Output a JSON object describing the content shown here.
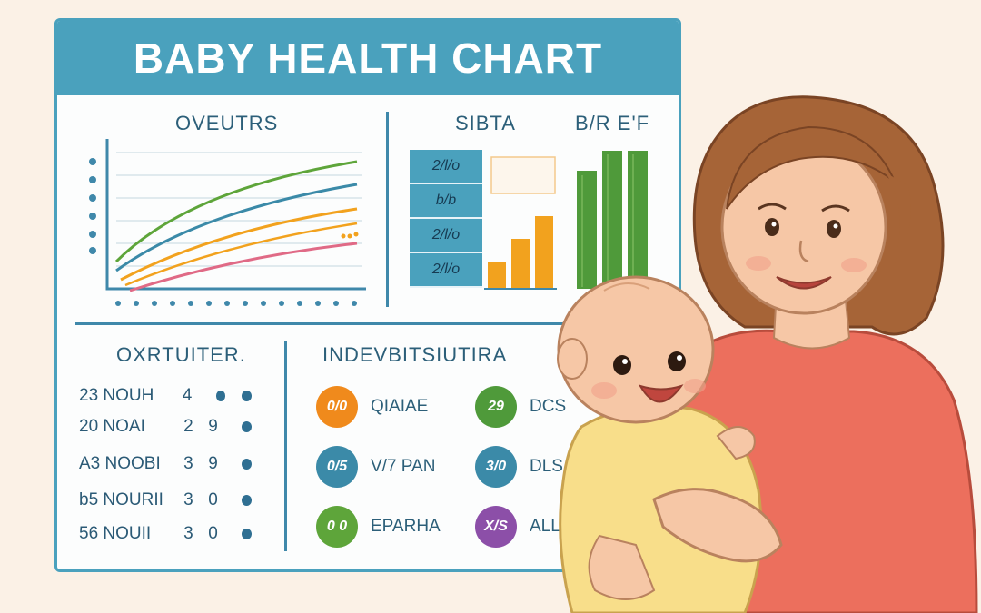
{
  "poster": {
    "title": "BABY HEALTH CHART",
    "growth_panel": {
      "label": "OVEUTRS"
    },
    "middle_panel": {
      "label": "SIBTA",
      "row_labels": [
        "2/l/o",
        "b/b",
        "2/l/o",
        "2/l/o"
      ]
    },
    "right_panel": {
      "label": "B/R E'F"
    },
    "stats_panel": {
      "label": "OXRTUITER.",
      "rows": [
        {
          "name": "23 NOUH",
          "count": "4",
          "a": "",
          "b": ""
        },
        {
          "name": "20 NOAI",
          "count": "2",
          "a": "9",
          "b": ""
        },
        {
          "name": "A3 NOOBI",
          "count": "3",
          "a": "9",
          "b": ""
        },
        {
          "name": "b5 NOURII",
          "count": "3",
          "a": "0",
          "b": ""
        },
        {
          "name": "56 NOUII",
          "count": "3",
          "a": "0",
          "b": ""
        }
      ]
    },
    "indicators_panel": {
      "label": "INDEVBITSIUTIRA",
      "items": [
        {
          "badge": "0/0",
          "text": "QIAIAE",
          "color": "#f08a1c"
        },
        {
          "badge": "29",
          "text": "DCS",
          "color": "#4f9a3a"
        },
        {
          "badge": "0/5",
          "text": "V/7 PAN",
          "color": "#3b8aa8"
        },
        {
          "badge": "3/0",
          "text": "DLS",
          "color": "#3b8aa8"
        },
        {
          "badge": "0 0",
          "text": "EPARHA",
          "color": "#5ea53a"
        },
        {
          "badge": "X/S",
          "text": "ALL",
          "color": "#8c4fa8"
        }
      ]
    }
  },
  "colors": {
    "header": "#4aa1bd",
    "line_green": "#5ea53a",
    "line_blue": "#3b8aa8",
    "line_orange": "#f2a21e",
    "line_pink": "#e06a86",
    "bar_orange": "#f2a21e",
    "bar_green": "#4f9a3a",
    "skin": "#f6c7a6",
    "hair": "#a66437",
    "shirt": "#ec6f5d",
    "onesie": "#f8de8a"
  },
  "icons": [
    "baby-icon",
    "growth-chart-icon",
    "bar-chart-icon"
  ]
}
